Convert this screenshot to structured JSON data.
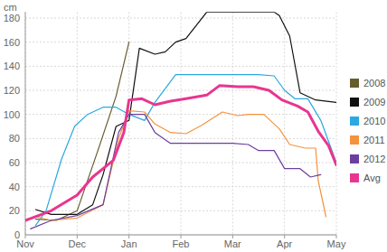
{
  "chart_data": {
    "type": "line",
    "y_label": "cm",
    "xlim": [
      0,
      6
    ],
    "xticks": [
      {
        "value": 0,
        "label": "Nov"
      },
      {
        "value": 1,
        "label": "Dec"
      },
      {
        "value": 2,
        "label": "Jan"
      },
      {
        "value": 3,
        "label": "Feb"
      },
      {
        "value": 4,
        "label": "Mar"
      },
      {
        "value": 5,
        "label": "Apr"
      },
      {
        "value": 6,
        "label": "May"
      }
    ],
    "ylim": [
      0,
      185
    ],
    "yticks": [
      0,
      20,
      40,
      60,
      80,
      100,
      120,
      140,
      160,
      180
    ],
    "grid": true,
    "legend": "right",
    "series": [
      {
        "name": "2008",
        "color": "#675c2c",
        "x": [
          0.2,
          0.6,
          1.0,
          1.4,
          1.75,
          2.0
        ],
        "values": [
          13,
          12,
          20,
          70,
          115,
          160
        ]
      },
      {
        "name": "2009",
        "color": "#111111",
        "x": [
          0.2,
          0.5,
          1.0,
          1.3,
          1.5,
          1.75,
          2.0,
          2.2,
          2.5,
          2.7,
          2.9,
          3.1,
          3.5,
          4.0,
          4.5,
          4.8,
          4.9,
          5.1,
          5.3,
          5.6,
          6.0
        ],
        "values": [
          21,
          17,
          17,
          25,
          50,
          90,
          95,
          155,
          150,
          152,
          160,
          163,
          185,
          185,
          185,
          185,
          182,
          165,
          118,
          112,
          110
        ]
      },
      {
        "name": "2010",
        "color": "#2aa8e0",
        "x": [
          0.2,
          0.4,
          0.7,
          0.95,
          1.2,
          1.5,
          1.75,
          2.0,
          2.3,
          2.5,
          2.9,
          3.5,
          4.0,
          4.5,
          4.8,
          5.0,
          5.2,
          5.45,
          5.7,
          6.0
        ],
        "values": [
          8,
          20,
          63,
          90,
          100,
          106,
          106,
          100,
          95,
          110,
          133,
          133,
          133,
          133,
          132,
          120,
          113,
          113,
          95,
          60
        ]
      },
      {
        "name": "2011",
        "color": "#f5923e",
        "x": [
          0.2,
          0.5,
          1.0,
          1.5,
          1.8,
          2.0,
          2.3,
          2.5,
          2.8,
          3.1,
          3.4,
          3.8,
          4.1,
          4.3,
          4.6,
          4.9,
          5.1,
          5.4,
          5.6,
          5.65,
          5.8
        ],
        "values": [
          15,
          12,
          14,
          25,
          80,
          103,
          102,
          92,
          85,
          84,
          91,
          102,
          99,
          100,
          100,
          88,
          75,
          72,
          72,
          45,
          15
        ]
      },
      {
        "name": "2012",
        "color": "#6b3fa0",
        "x": [
          0.1,
          0.5,
          1.0,
          1.5,
          1.8,
          2.0,
          2.3,
          2.5,
          2.8,
          3.2,
          3.6,
          4.0,
          4.3,
          4.5,
          4.8,
          5.0,
          5.3,
          5.5,
          5.7
        ],
        "values": [
          5,
          12,
          16,
          25,
          85,
          100,
          100,
          85,
          76,
          76,
          76,
          76,
          75,
          70,
          70,
          55,
          55,
          48,
          50
        ]
      },
      {
        "name": "Avg",
        "color": "#e8368f",
        "x": [
          0.0,
          0.5,
          1.0,
          1.3,
          1.7,
          1.9,
          2.0,
          2.25,
          2.5,
          2.8,
          3.1,
          3.5,
          3.75,
          4.1,
          4.4,
          4.7,
          4.95,
          5.25,
          5.45,
          5.65,
          5.85,
          6.0
        ],
        "values": [
          12,
          20,
          33,
          48,
          62,
          85,
          112,
          113,
          108,
          111,
          113,
          116,
          124,
          123,
          123,
          120,
          112,
          107,
          102,
          86,
          74,
          58
        ]
      }
    ]
  }
}
